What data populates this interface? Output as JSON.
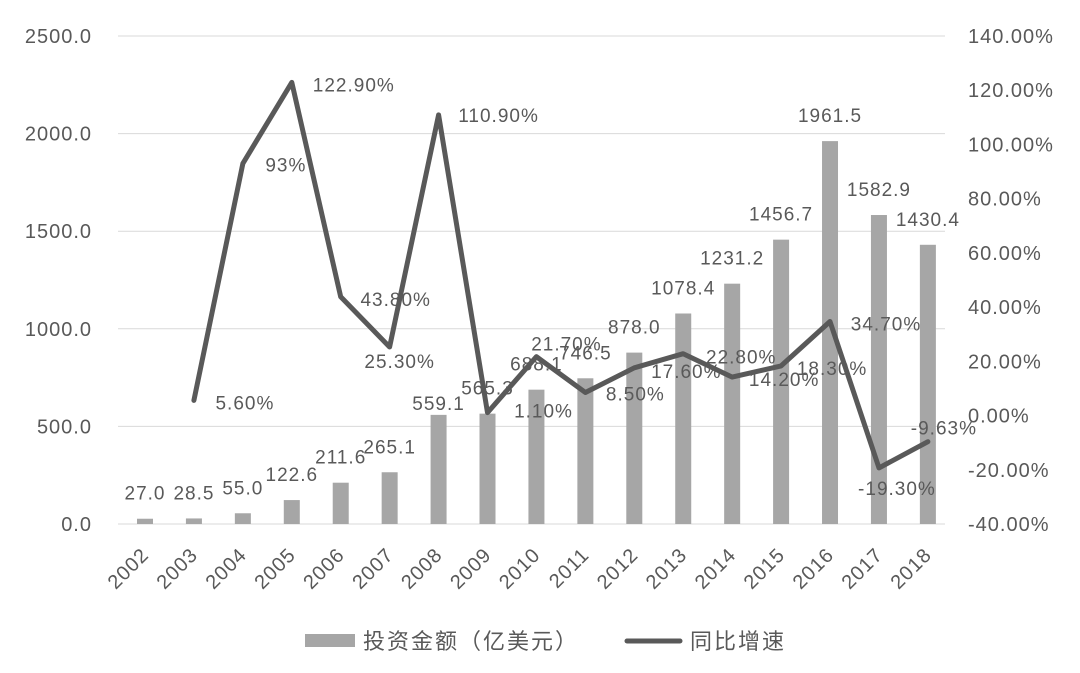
{
  "chart_data": {
    "type": "bar",
    "categories": [
      "2002",
      "2003",
      "2004",
      "2005",
      "2006",
      "2007",
      "2008",
      "2009",
      "2010",
      "2011",
      "2012",
      "2013",
      "2014",
      "2015",
      "2016",
      "2017",
      "2018"
    ],
    "series": [
      {
        "name": "投资金额（亿美元）",
        "type": "bar",
        "axis": "left",
        "values": [
          27.0,
          28.5,
          55.0,
          122.6,
          211.6,
          265.1,
          559.1,
          565.3,
          688.1,
          746.5,
          878.0,
          1078.4,
          1231.2,
          1456.7,
          1961.5,
          1582.9,
          1430.4
        ],
        "labels": [
          "27.0",
          "28.5",
          "55.0",
          "122.6",
          "211.6",
          "265.1",
          "559.1",
          "565.3",
          "688.1",
          "746.5",
          "878.0",
          "1078.4",
          "1231.2",
          "1456.7",
          "1961.5",
          "1582.9",
          "1430.4"
        ]
      },
      {
        "name": "同比增速",
        "type": "line",
        "axis": "right",
        "values": [
          null,
          5.6,
          93,
          122.9,
          43.8,
          25.3,
          110.9,
          1.1,
          21.7,
          8.5,
          17.6,
          22.8,
          14.2,
          18.3,
          34.7,
          -19.3,
          -9.63
        ],
        "labels": [
          null,
          "5.60%",
          "93%",
          "122.90%",
          "43.80%",
          "25.30%",
          "110.90%",
          "1.10%",
          "21.70%",
          "8.50%",
          "17.60%",
          "22.80%",
          "14.20%",
          "18.30%",
          "34.70%",
          "-19.30%",
          "-9.63%"
        ]
      }
    ],
    "y_left": {
      "range": [
        0,
        2500
      ],
      "ticks": [
        "0.0",
        "500.0",
        "1000.0",
        "1500.0",
        "2000.0",
        "2500.0"
      ]
    },
    "y_right": {
      "range": [
        -40,
        140
      ],
      "ticks": [
        "-40.00%",
        "-20.00%",
        "0.00%",
        "20.00%",
        "40.00%",
        "60.00%",
        "80.00%",
        "100.00%",
        "120.00%",
        "140.00%"
      ]
    },
    "grid": true,
    "legend": "bottom",
    "colors": {
      "bar": "#a6a6a6",
      "line": "#595959",
      "text": "#595959",
      "grid": "#d9d9d9"
    }
  }
}
